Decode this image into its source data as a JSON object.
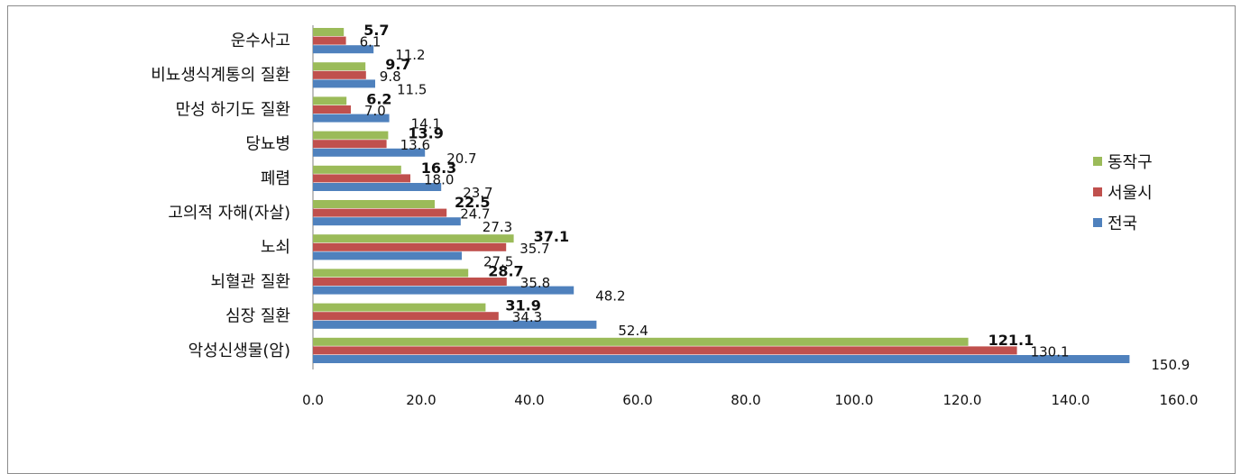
{
  "chart_data": {
    "type": "bar",
    "orientation": "horizontal",
    "categories": [
      "운수사고",
      "비뇨생식계통의 질환",
      "만성 하기도 질환",
      "당뇨병",
      "폐렴",
      "고의적 자해(자살)",
      "노쇠",
      "뇌혈관 질환",
      "심장 질환",
      "악성신생물(암)"
    ],
    "series": [
      {
        "name": "동작구",
        "color": "#9bbb59",
        "values": [
          5.7,
          9.7,
          6.2,
          13.9,
          16.3,
          22.5,
          37.1,
          28.7,
          31.9,
          121.1
        ]
      },
      {
        "name": "서울시",
        "color": "#c0504d",
        "values": [
          6.1,
          9.8,
          7.0,
          13.6,
          18.0,
          24.7,
          35.7,
          35.8,
          34.3,
          130.1
        ]
      },
      {
        "name": "전국",
        "color": "#4f81bd",
        "values": [
          11.2,
          11.5,
          14.1,
          20.7,
          23.7,
          27.3,
          27.5,
          48.2,
          52.4,
          150.9
        ]
      }
    ],
    "value_labels": {
      "동작구": [
        "5.7",
        "9.7",
        "6.2",
        "13.9",
        "16.3",
        "22.5",
        "37.1",
        "28.7",
        "31.9",
        "121.1"
      ],
      "서울시": [
        "6.1",
        "9.8",
        "7.0",
        "13.6",
        "18.0",
        "24.7",
        "35.7",
        "35.8",
        "34.3",
        "130.1"
      ],
      "전국": [
        "11.2",
        "11.5",
        "14.1",
        "20.7",
        "23.7",
        "27.3",
        "27.5",
        "48.2",
        "52.4",
        "150.9"
      ]
    },
    "xlim": [
      0,
      160
    ],
    "x_ticks": [
      "0.0",
      "20.0",
      "40.0",
      "60.0",
      "80.0",
      "100.0",
      "120.0",
      "140.0",
      "160.0"
    ],
    "grid": false,
    "legend_position": "right",
    "title": "",
    "xlabel": "",
    "ylabel": ""
  }
}
